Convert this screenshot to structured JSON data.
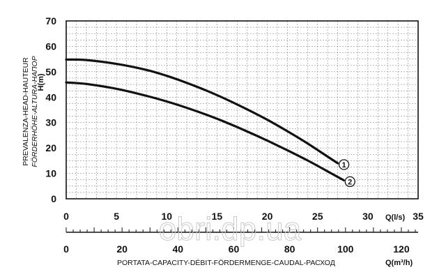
{
  "chart_data": {
    "type": "line",
    "ylabel_lines": [
      "PREVALENZA-HEAD-HAUTEUR",
      "FÖRDERHÖHE-ALTURA-НАПОР"
    ],
    "ylabel_unit": "H(m)",
    "ylim": [
      0,
      70
    ],
    "y_ticks": [
      0,
      10,
      20,
      30,
      40,
      50,
      60,
      70
    ],
    "xlim": [
      0,
      35
    ],
    "x_ticks": [
      0,
      5,
      10,
      15,
      20,
      25,
      30,
      35
    ],
    "xlabel": "Q(l/s)",
    "x2_ticks": [
      0,
      20,
      40,
      60,
      80,
      100,
      120
    ],
    "x2label": "Q(m³/h)",
    "x2_caption": "PORTATA-CAPACITY-DÉBIT-FÖRDERMENGE-CAUDAL-РАСХОД",
    "grid": true,
    "series": [
      {
        "name": "1",
        "x": [
          0,
          2,
          5,
          8,
          10,
          12,
          14,
          16,
          18,
          20,
          22,
          24,
          26,
          27
        ],
        "y": [
          54.8,
          54.6,
          53.1,
          50.7,
          48.4,
          45.6,
          42.5,
          39.0,
          35.2,
          31.1,
          26.6,
          21.8,
          16.6,
          14.0
        ]
      },
      {
        "name": "2",
        "x": [
          0,
          2,
          5,
          8,
          10,
          12,
          14,
          16,
          18,
          20,
          22,
          24,
          26,
          27.6
        ],
        "y": [
          45.8,
          45.2,
          43.3,
          40.5,
          38.3,
          35.8,
          33.0,
          29.9,
          26.5,
          22.9,
          19.1,
          15.1,
          10.8,
          7.3
        ]
      }
    ]
  },
  "watermark": "obri.dp.ua"
}
